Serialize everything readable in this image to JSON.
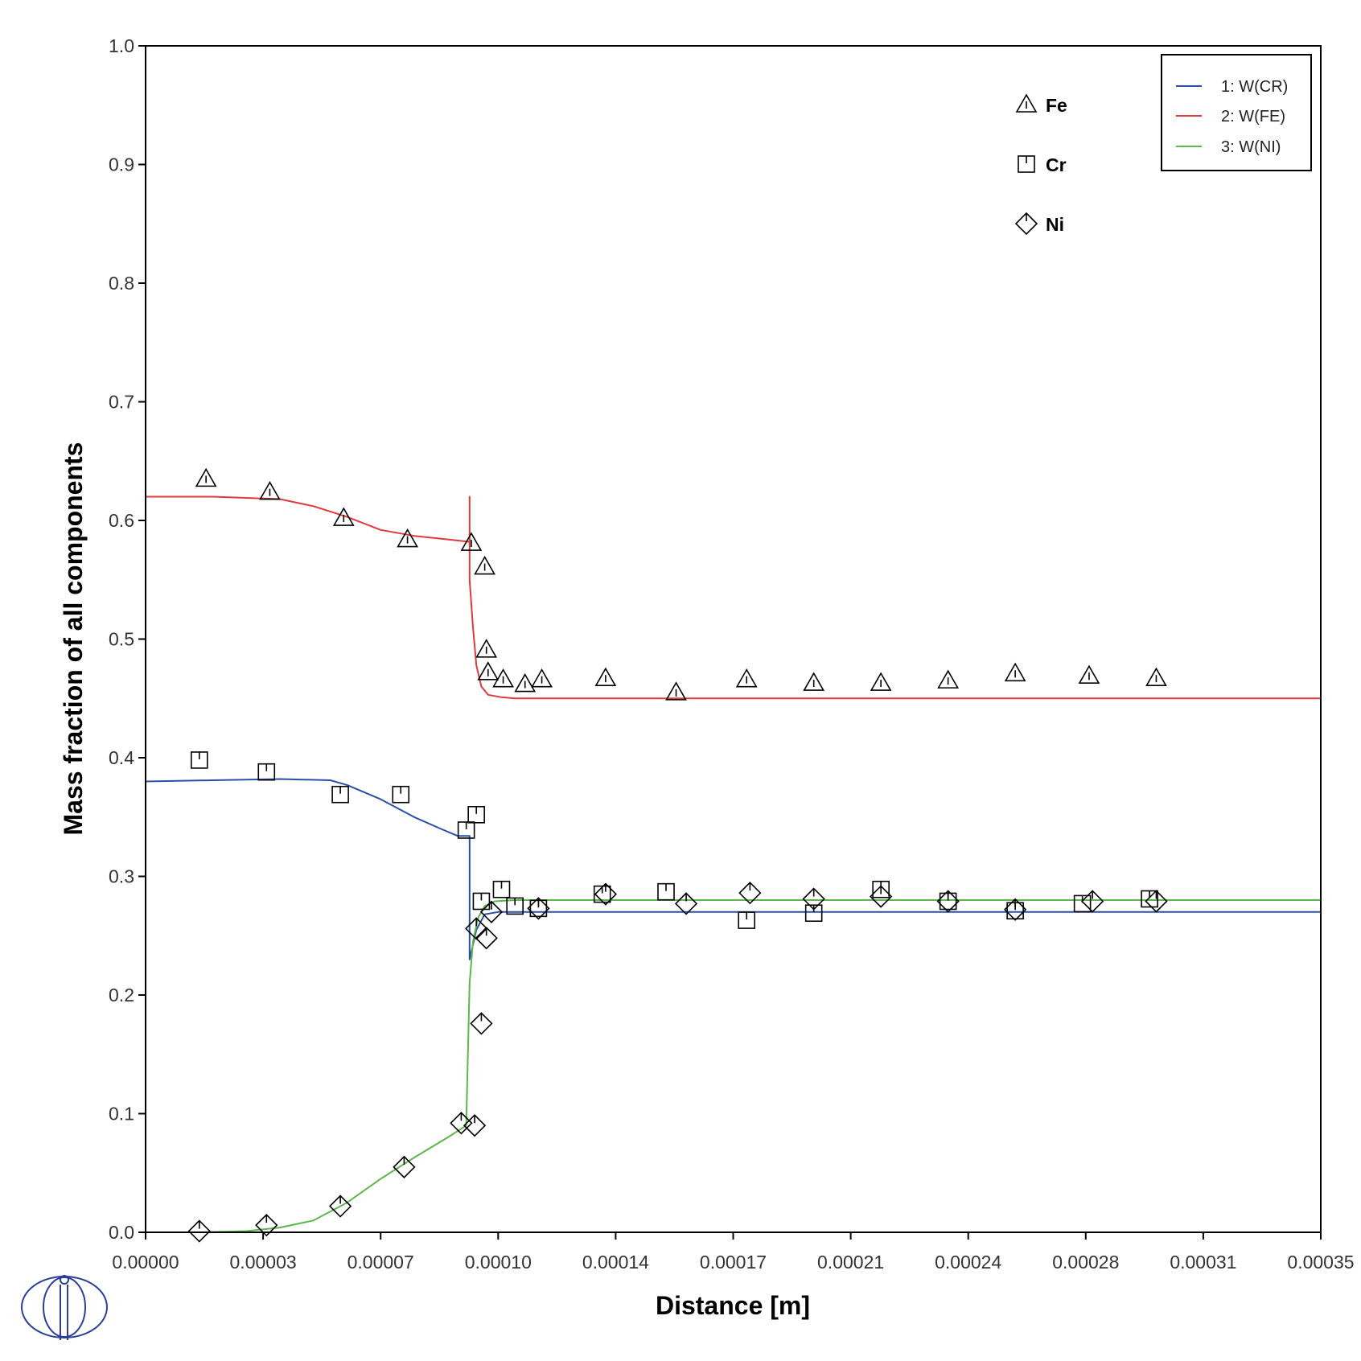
{
  "chart_data": {
    "type": "line",
    "xlabel": "Distance [m]",
    "ylabel": "Mass fraction of all components",
    "xlim": [
      0,
      0.00035
    ],
    "ylim": [
      0,
      1.0
    ],
    "x_ticks": [
      "0.00000",
      "0.00003",
      "0.00007",
      "0.00010",
      "0.00014",
      "0.00017",
      "0.00021",
      "0.00024",
      "0.00028",
      "0.00031",
      "0.00035"
    ],
    "y_ticks": [
      "0.0",
      "0.1",
      "0.2",
      "0.3",
      "0.4",
      "0.5",
      "0.6",
      "0.7",
      "0.8",
      "0.9",
      "1.0"
    ],
    "grid": false,
    "legend_position": "top-right",
    "series": [
      {
        "name": "1:  W(CR)",
        "color": "#2b4fa8",
        "x": [
          0,
          2e-05,
          4e-05,
          5.5e-05,
          6e-05,
          7e-05,
          8e-05,
          8.8e-05,
          9.3e-05,
          9.65e-05,
          9.65e-05,
          9.85e-05,
          0.000101,
          0.000105,
          0.00011,
          0.00013,
          0.00035
        ],
        "y": [
          0.38,
          0.381,
          0.382,
          0.381,
          0.377,
          0.365,
          0.35,
          0.34,
          0.334,
          0.334,
          0.23,
          0.255,
          0.268,
          0.27,
          0.27,
          0.27,
          0.27
        ]
      },
      {
        "name": "2:  W(FE)",
        "color": "#e0393e",
        "x": [
          0,
          2e-05,
          4e-05,
          5e-05,
          6e-05,
          7e-05,
          8e-05,
          9e-05,
          9.65e-05,
          9.65e-05,
          9.65e-05,
          9.75e-05,
          9.85e-05,
          0.0001,
          0.000102,
          0.000106,
          0.00011,
          0.00013,
          0.00035
        ],
        "y": [
          0.62,
          0.62,
          0.618,
          0.612,
          0.603,
          0.592,
          0.587,
          0.584,
          0.582,
          0.62,
          0.55,
          0.51,
          0.478,
          0.46,
          0.453,
          0.451,
          0.45,
          0.45,
          0.45
        ]
      },
      {
        "name": "3:  W(NI)",
        "color": "#5cb84a",
        "x": [
          1.6e-05,
          3e-05,
          4e-05,
          5e-05,
          6e-05,
          7e-05,
          8e-05,
          9e-05,
          9.55e-05,
          9.65e-05,
          9.75e-05,
          9.9e-05,
          0.000101,
          0.000104,
          0.00011,
          0.00013,
          0.00035
        ],
        "y": [
          0,
          0.001,
          0.004,
          0.01,
          0.025,
          0.045,
          0.063,
          0.08,
          0.09,
          0.21,
          0.245,
          0.265,
          0.275,
          0.279,
          0.28,
          0.28,
          0.28
        ]
      }
    ],
    "markers": [
      {
        "name": "Fe",
        "symbol": "triangle",
        "points": [
          [
            1.8e-05,
            0.635
          ],
          [
            3.7e-05,
            0.624
          ],
          [
            5.9e-05,
            0.602
          ],
          [
            7.8e-05,
            0.584
          ],
          [
            9.7e-05,
            0.581
          ],
          [
            0.000101,
            0.561
          ],
          [
            0.0001015,
            0.491
          ],
          [
            0.000102,
            0.472
          ],
          [
            0.0001065,
            0.466
          ],
          [
            0.000113,
            0.462
          ],
          [
            0.000118,
            0.466
          ],
          [
            0.000137,
            0.467
          ],
          [
            0.000158,
            0.455
          ],
          [
            0.000179,
            0.466
          ],
          [
            0.000199,
            0.463
          ],
          [
            0.000219,
            0.463
          ],
          [
            0.000239,
            0.465
          ],
          [
            0.000259,
            0.471
          ],
          [
            0.000281,
            0.469
          ],
          [
            0.000301,
            0.467
          ]
        ]
      },
      {
        "name": "Cr",
        "symbol": "square",
        "points": [
          [
            1.6e-05,
            0.398
          ],
          [
            3.6e-05,
            0.388
          ],
          [
            5.8e-05,
            0.369
          ],
          [
            7.6e-05,
            0.369
          ],
          [
            9.55e-05,
            0.339
          ],
          [
            9.85e-05,
            0.352
          ],
          [
            0.0001,
            0.279
          ],
          [
            0.000106,
            0.289
          ],
          [
            0.00011,
            0.275
          ],
          [
            0.000117,
            0.273
          ],
          [
            0.000136,
            0.285
          ],
          [
            0.000155,
            0.287
          ],
          [
            0.000179,
            0.263
          ],
          [
            0.000199,
            0.269
          ],
          [
            0.000219,
            0.289
          ],
          [
            0.000239,
            0.279
          ],
          [
            0.000259,
            0.271
          ],
          [
            0.000279,
            0.277
          ],
          [
            0.000299,
            0.281
          ]
        ]
      },
      {
        "name": "Ni",
        "symbol": "diamond",
        "points": [
          [
            1.6e-05,
            0.001
          ],
          [
            3.6e-05,
            0.006
          ],
          [
            5.8e-05,
            0.022
          ],
          [
            7.7e-05,
            0.055
          ],
          [
            9.4e-05,
            0.092
          ],
          [
            9.8e-05,
            0.09
          ],
          [
            9.85e-05,
            0.256
          ],
          [
            0.0001,
            0.176
          ],
          [
            0.0001015,
            0.248
          ],
          [
            0.000103,
            0.27
          ],
          [
            0.000117,
            0.273
          ],
          [
            0.000137,
            0.285
          ],
          [
            0.000161,
            0.277
          ],
          [
            0.00018,
            0.286
          ],
          [
            0.000199,
            0.281
          ],
          [
            0.000219,
            0.283
          ],
          [
            0.000239,
            0.279
          ],
          [
            0.000259,
            0.272
          ],
          [
            0.000282,
            0.279
          ],
          [
            0.000301,
            0.279
          ]
        ]
      }
    ]
  }
}
